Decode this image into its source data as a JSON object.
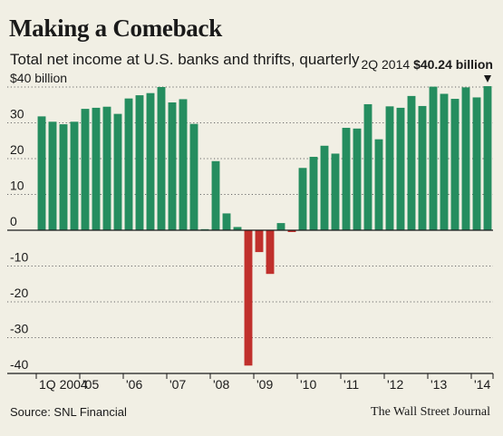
{
  "chart_data": {
    "type": "bar",
    "title": "Making a Comeback",
    "subtitle": "Total net income at U.S. banks and thrifts, quarterly",
    "source": "Source: SNL Financial",
    "credit": "The Wall Street Journal",
    "callout": {
      "period": "2Q 2014",
      "value_label": "$40.24 billion"
    },
    "ylim": [
      -40,
      40
    ],
    "yticks": [
      {
        "value": 40,
        "label": "$40 billion"
      },
      {
        "value": 30,
        "label": "30"
      },
      {
        "value": 20,
        "label": "20"
      },
      {
        "value": 10,
        "label": "10"
      },
      {
        "value": 0,
        "label": "0"
      },
      {
        "value": -10,
        "label": "-10"
      },
      {
        "value": -20,
        "label": "-20"
      },
      {
        "value": -30,
        "label": "-30"
      },
      {
        "value": -40,
        "label": "-40"
      }
    ],
    "xticks": [
      {
        "index": 0,
        "label": "1Q 2004"
      },
      {
        "index": 4,
        "label": "'05"
      },
      {
        "index": 8,
        "label": "'06"
      },
      {
        "index": 12,
        "label": "'07"
      },
      {
        "index": 16,
        "label": "'08"
      },
      {
        "index": 20,
        "label": "'09"
      },
      {
        "index": 24,
        "label": "'10"
      },
      {
        "index": 28,
        "label": "'11"
      },
      {
        "index": 32,
        "label": "'12"
      },
      {
        "index": 36,
        "label": "'13"
      },
      {
        "index": 40,
        "label": "'14"
      }
    ],
    "categories": [
      "1Q 2004",
      "2Q 2004",
      "3Q 2004",
      "4Q 2004",
      "1Q 2005",
      "2Q 2005",
      "3Q 2005",
      "4Q 2005",
      "1Q 2006",
      "2Q 2006",
      "3Q 2006",
      "4Q 2006",
      "1Q 2007",
      "2Q 2007",
      "3Q 2007",
      "4Q 2007",
      "1Q 2008",
      "2Q 2008",
      "3Q 2008",
      "4Q 2008",
      "1Q 2009",
      "2Q 2009",
      "3Q 2009",
      "4Q 2009",
      "1Q 2010",
      "2Q 2010",
      "3Q 2010",
      "4Q 2010",
      "1Q 2011",
      "2Q 2011",
      "3Q 2011",
      "4Q 2011",
      "1Q 2012",
      "2Q 2012",
      "3Q 2012",
      "4Q 2012",
      "1Q 2013",
      "2Q 2013",
      "3Q 2013",
      "4Q 2013",
      "1Q 2014",
      "2Q 2014"
    ],
    "values": [
      31.8,
      30.3,
      29.6,
      30.3,
      33.9,
      34.2,
      34.5,
      32.5,
      36.8,
      37.7,
      38.3,
      40.0,
      35.7,
      36.6,
      29.7,
      0.3,
      19.3,
      4.7,
      0.9,
      -37.8,
      -6.1,
      -12.2,
      2.0,
      -0.5,
      17.4,
      20.5,
      23.6,
      21.4,
      28.6,
      28.4,
      35.2,
      25.4,
      34.6,
      34.2,
      37.5,
      34.7,
      40.1,
      38.1,
      36.7,
      39.9,
      37.1,
      40.24
    ],
    "colors": {
      "positive": "#258d5f",
      "negative": "#c0302c",
      "grid": "#6a6a6a",
      "background": "#f1efe4"
    }
  }
}
